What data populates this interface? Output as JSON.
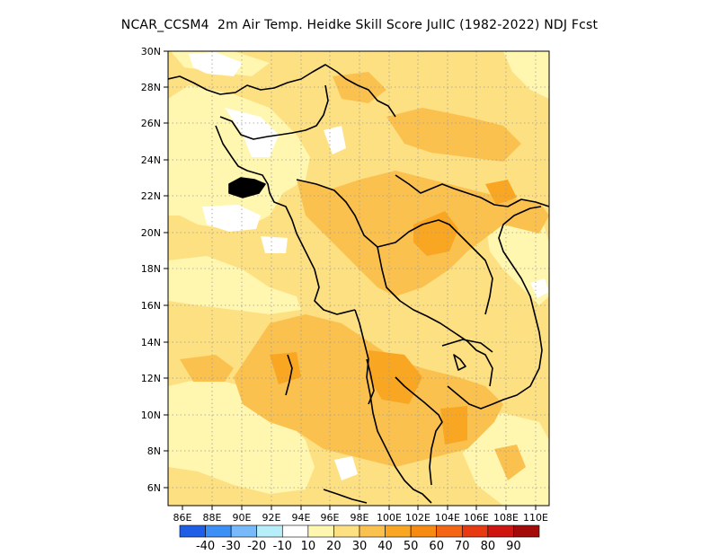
{
  "title": "NCAR_CCSM4  2m Air Temp. Heidke Skill Score JulIC (1982-2022) NDJ Fcst",
  "axes": {
    "x_ticks": [
      "86E",
      "88E",
      "90E",
      "92E",
      "94E",
      "96E",
      "98E",
      "100E",
      "102E",
      "104E",
      "106E",
      "108E",
      "110E"
    ],
    "y_ticks": [
      "30N",
      "28N",
      "26N",
      "24N",
      "22N",
      "20N",
      "18N",
      "16N",
      "14N",
      "12N",
      "10N",
      "8N",
      "6N"
    ]
  },
  "colorbar": {
    "colors": [
      "#1f5ee6",
      "#3c8ff5",
      "#78b9fa",
      "#b7eefc",
      "#ffffff",
      "#fff6b0",
      "#fde082",
      "#fbc14f",
      "#f9a623",
      "#f78a10",
      "#f46615",
      "#e83a12",
      "#cf1512",
      "#a30a0a"
    ],
    "labels": [
      "-40",
      "-30",
      "-20",
      "-10",
      "10",
      "20",
      "30",
      "40",
      "50",
      "60",
      "70",
      "80",
      "90"
    ]
  },
  "legend_colors": {
    "ocean_background": "#fde082",
    "coast": "#000000",
    "grid": "#9a9a9a"
  }
}
